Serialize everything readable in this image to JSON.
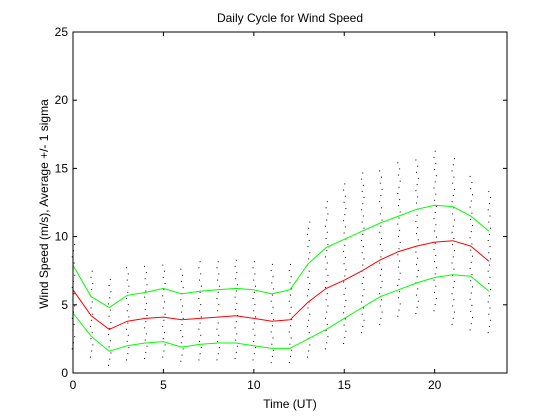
{
  "figure": {
    "background": "#ffffff"
  },
  "chart_data": {
    "type": "line",
    "title": "Daily Cycle for Wind Speed",
    "xlabel": "Time (UT)",
    "ylabel": "Wind Speed (m/s), Average +/- 1 sigma",
    "xlim": [
      0,
      24
    ],
    "ylim": [
      0,
      25
    ],
    "xticks": [
      0,
      5,
      10,
      15,
      20
    ],
    "yticks": [
      0,
      5,
      10,
      15,
      20,
      25
    ],
    "grid": false,
    "legend": "none",
    "x": [
      0,
      1,
      2,
      3,
      4,
      5,
      6,
      7,
      8,
      9,
      10,
      11,
      12,
      13,
      14,
      15,
      16,
      17,
      18,
      19,
      20,
      21,
      22,
      23
    ],
    "series": [
      {
        "role": "average",
        "color": "#ff0000",
        "values": [
          6.1,
          4.2,
          3.2,
          3.8,
          4.0,
          4.1,
          3.9,
          4.0,
          4.1,
          4.2,
          4.0,
          3.8,
          3.9,
          5.2,
          6.2,
          6.8,
          7.5,
          8.3,
          8.9,
          9.3,
          9.6,
          9.7,
          9.3,
          8.2
        ]
      },
      {
        "role": "average + 1 sigma",
        "color": "#00ff00",
        "values": [
          7.9,
          5.6,
          4.8,
          5.7,
          5.9,
          6.2,
          5.8,
          6.0,
          6.1,
          6.2,
          6.1,
          5.8,
          6.1,
          8.0,
          9.2,
          9.8,
          10.4,
          11.0,
          11.5,
          12.0,
          12.3,
          12.2,
          11.5,
          10.4
        ]
      },
      {
        "role": "average - 1 sigma",
        "color": "#00ff00",
        "values": [
          4.4,
          2.7,
          1.6,
          2.0,
          2.2,
          2.3,
          1.9,
          2.1,
          2.2,
          2.2,
          2.0,
          1.8,
          1.8,
          2.5,
          3.2,
          4.0,
          4.8,
          5.6,
          6.1,
          6.6,
          7.0,
          7.2,
          7.1,
          6.0
        ]
      }
    ],
    "scatter_color": "#000000",
    "observation_range": [
      {
        "x": 0,
        "min": 1.8,
        "max": 9.6
      },
      {
        "x": 1,
        "min": 1.2,
        "max": 7.6
      },
      {
        "x": 2,
        "min": 0.6,
        "max": 6.9
      },
      {
        "x": 3,
        "min": 1.0,
        "max": 8.0
      },
      {
        "x": 4,
        "min": 1.1,
        "max": 8.1
      },
      {
        "x": 5,
        "min": 1.2,
        "max": 8.3
      },
      {
        "x": 6,
        "min": 0.9,
        "max": 8.0
      },
      {
        "x": 7,
        "min": 1.0,
        "max": 8.2
      },
      {
        "x": 8,
        "min": 1.0,
        "max": 8.4
      },
      {
        "x": 9,
        "min": 1.1,
        "max": 8.5
      },
      {
        "x": 10,
        "min": 1.0,
        "max": 8.2
      },
      {
        "x": 11,
        "min": 0.8,
        "max": 8.0
      },
      {
        "x": 12,
        "min": 0.8,
        "max": 8.3
      },
      {
        "x": 13,
        "min": 1.2,
        "max": 11.2
      },
      {
        "x": 14,
        "min": 1.8,
        "max": 12.8
      },
      {
        "x": 15,
        "min": 2.2,
        "max": 14.3
      },
      {
        "x": 16,
        "min": 3.0,
        "max": 14.8
      },
      {
        "x": 17,
        "min": 3.6,
        "max": 15.2
      },
      {
        "x": 18,
        "min": 4.2,
        "max": 15.5
      },
      {
        "x": 19,
        "min": 4.4,
        "max": 16.0
      },
      {
        "x": 20,
        "min": 4.6,
        "max": 16.4
      },
      {
        "x": 21,
        "min": 3.6,
        "max": 15.9
      },
      {
        "x": 22,
        "min": 3.2,
        "max": 14.8
      },
      {
        "x": 23,
        "min": 3.0,
        "max": 13.5
      }
    ]
  }
}
